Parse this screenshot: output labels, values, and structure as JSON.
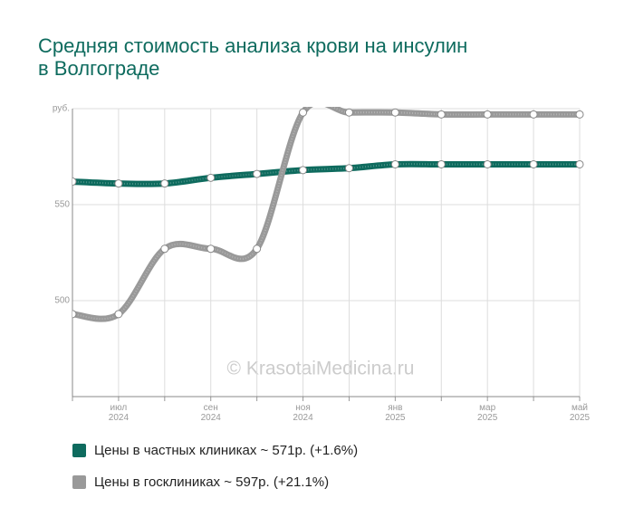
{
  "chart_data": {
    "type": "line",
    "title": [
      "Средняя стоимость анализа крови на инсулин",
      "в Волгограде"
    ],
    "watermark": "© KrasotaiMedicina.ru",
    "categories": [
      null,
      "июл 2024",
      null,
      "сен 2024",
      null,
      "ноя 2024",
      null,
      "янв 2025",
      null,
      "мар 2025",
      null,
      "май 2025"
    ],
    "series": [
      {
        "name": "Цены в частных клиниках ~ 571р. (+1.6%)",
        "color": "#0e6b5e",
        "values": [
          562,
          561,
          561,
          564,
          566,
          568,
          569,
          571,
          571,
          571,
          571,
          571
        ]
      },
      {
        "name": "Цены в госклиниках ~ 597р. (+21.1%)",
        "color": "#999999",
        "values": [
          493,
          493,
          527,
          527,
          527,
          598,
          598,
          598,
          597,
          597,
          597,
          597
        ]
      }
    ],
    "ylim": [
      450,
      600
    ],
    "yticks": [
      500,
      550,
      {
        "value": 600,
        "label": "руб."
      }
    ],
    "grid": true
  }
}
